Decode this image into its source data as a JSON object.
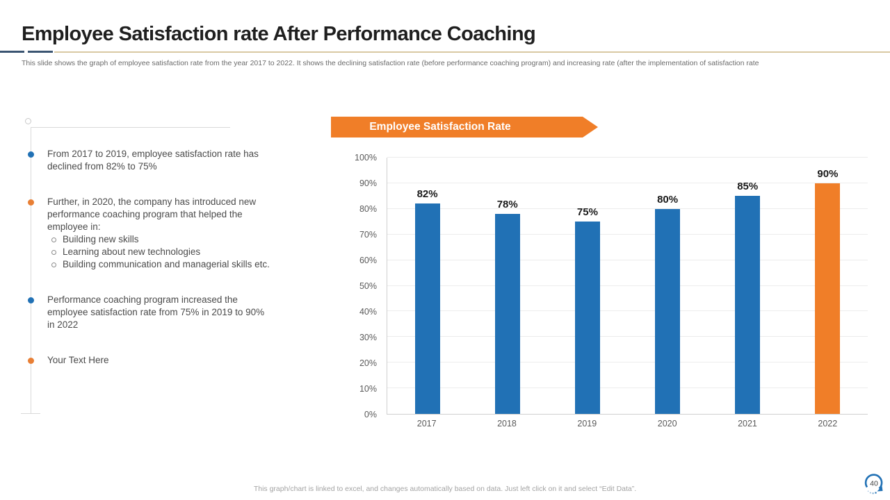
{
  "slide": {
    "title": "Employee Satisfaction rate After Performance Coaching",
    "subtitle": "This slide shows the graph of employee satisfaction rate from the year 2017 to 2022. It shows the declining satisfaction rate (before performance coaching program) and increasing rate (after the implementation  of satisfaction rate",
    "footer_note": "This graph/chart is linked to excel, and changes automatically based on data. Just left click on it and select “Edit Data”.",
    "page_number": "40"
  },
  "bullets": [
    {
      "marker_color": "#2171b5",
      "text": "From 2017 to 2019, employee satisfaction rate has declined from 82% to 75%",
      "sub": []
    },
    {
      "marker_color": "#e87f35",
      "text": "Further, in 2020, the company has introduced new performance coaching program that helped the employee in:",
      "sub": [
        "Building new skills",
        "Learning about new technologies",
        "Building communication and managerial skills etc."
      ]
    },
    {
      "marker_color": "#2171b5",
      "text": "Performance coaching program increased the employee satisfaction rate from 75% in 2019 to 90% in 2022",
      "sub": []
    },
    {
      "marker_color": "#e87f35",
      "text": "Your Text Here",
      "sub": []
    }
  ],
  "chart_banner": {
    "label": "Employee Satisfaction Rate",
    "color": "#f07e28"
  },
  "chart_data": {
    "type": "bar",
    "title": "Employee Satisfaction Rate",
    "categories": [
      "2017",
      "2018",
      "2019",
      "2020",
      "2021",
      "2022"
    ],
    "values": [
      82,
      78,
      75,
      80,
      85,
      90
    ],
    "value_labels": [
      "82%",
      "78%",
      "75%",
      "80%",
      "85%",
      "90%"
    ],
    "bar_colors": [
      "#2171b5",
      "#2171b5",
      "#2171b5",
      "#2171b5",
      "#2171b5",
      "#f07e28"
    ],
    "xlabel": "",
    "ylabel": "",
    "ylim": [
      0,
      100
    ],
    "ytick_step": 10,
    "ytick_labels": [
      "0%",
      "10%",
      "20%",
      "30%",
      "40%",
      "50%",
      "60%",
      "70%",
      "80%",
      "90%",
      "100%"
    ],
    "grid": true,
    "legend": "none"
  },
  "colors": {
    "bar_blue": "#2171b5",
    "bar_orange": "#f07e28",
    "banner_orange": "#f07e28",
    "divider_navy": "#3a5471",
    "divider_tan": "#d9c9a2",
    "badge_blue": "#2171b5"
  }
}
